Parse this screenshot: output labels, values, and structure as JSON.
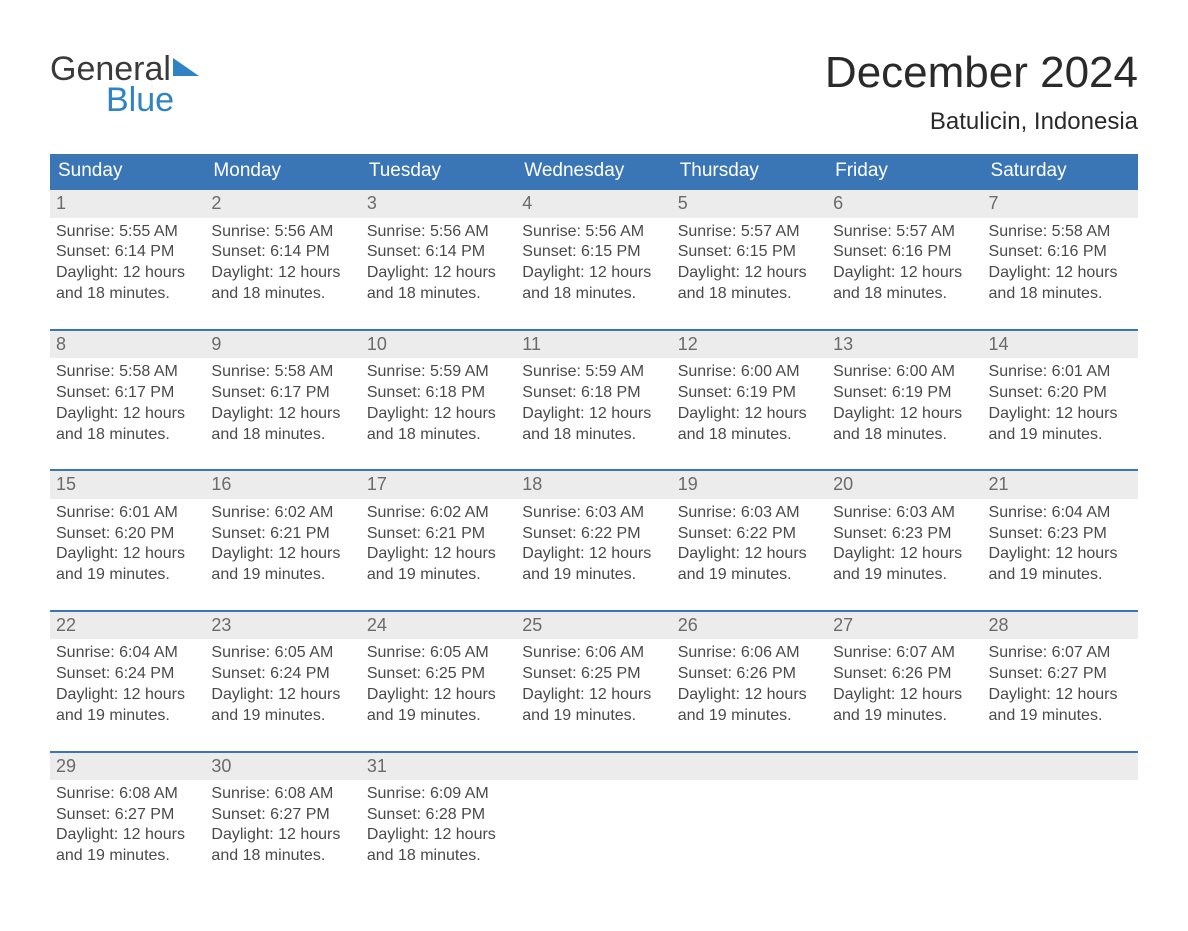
{
  "brand": {
    "word1": "General",
    "word2": "Blue"
  },
  "title": {
    "month": "December 2024",
    "location": "Batulicin, Indonesia"
  },
  "colors": {
    "header_blue": "#3a76b6",
    "row_stripe": "#ececec",
    "separator": "#3a76b6",
    "logo_blue": "#2f83c5",
    "background": "#ffffff",
    "text_dark": "#2b2b2b",
    "text_mid": "#4a4a4a",
    "day_num": "#6b6b6b"
  },
  "typography": {
    "month_title_pt": 44,
    "location_pt": 24,
    "weekday_pt": 19,
    "body_pt": 16,
    "daynum_pt": 18,
    "family": "Arial"
  },
  "weekdays": [
    "Sunday",
    "Monday",
    "Tuesday",
    "Wednesday",
    "Thursday",
    "Friday",
    "Saturday"
  ],
  "first_weekday_index": 0,
  "days": [
    {
      "n": 1,
      "sunrise": "5:55 AM",
      "sunset": "6:14 PM",
      "daylight": "12 hours and 18 minutes."
    },
    {
      "n": 2,
      "sunrise": "5:56 AM",
      "sunset": "6:14 PM",
      "daylight": "12 hours and 18 minutes."
    },
    {
      "n": 3,
      "sunrise": "5:56 AM",
      "sunset": "6:14 PM",
      "daylight": "12 hours and 18 minutes."
    },
    {
      "n": 4,
      "sunrise": "5:56 AM",
      "sunset": "6:15 PM",
      "daylight": "12 hours and 18 minutes."
    },
    {
      "n": 5,
      "sunrise": "5:57 AM",
      "sunset": "6:15 PM",
      "daylight": "12 hours and 18 minutes."
    },
    {
      "n": 6,
      "sunrise": "5:57 AM",
      "sunset": "6:16 PM",
      "daylight": "12 hours and 18 minutes."
    },
    {
      "n": 7,
      "sunrise": "5:58 AM",
      "sunset": "6:16 PM",
      "daylight": "12 hours and 18 minutes."
    },
    {
      "n": 8,
      "sunrise": "5:58 AM",
      "sunset": "6:17 PM",
      "daylight": "12 hours and 18 minutes."
    },
    {
      "n": 9,
      "sunrise": "5:58 AM",
      "sunset": "6:17 PM",
      "daylight": "12 hours and 18 minutes."
    },
    {
      "n": 10,
      "sunrise": "5:59 AM",
      "sunset": "6:18 PM",
      "daylight": "12 hours and 18 minutes."
    },
    {
      "n": 11,
      "sunrise": "5:59 AM",
      "sunset": "6:18 PM",
      "daylight": "12 hours and 18 minutes."
    },
    {
      "n": 12,
      "sunrise": "6:00 AM",
      "sunset": "6:19 PM",
      "daylight": "12 hours and 18 minutes."
    },
    {
      "n": 13,
      "sunrise": "6:00 AM",
      "sunset": "6:19 PM",
      "daylight": "12 hours and 18 minutes."
    },
    {
      "n": 14,
      "sunrise": "6:01 AM",
      "sunset": "6:20 PM",
      "daylight": "12 hours and 19 minutes."
    },
    {
      "n": 15,
      "sunrise": "6:01 AM",
      "sunset": "6:20 PM",
      "daylight": "12 hours and 19 minutes."
    },
    {
      "n": 16,
      "sunrise": "6:02 AM",
      "sunset": "6:21 PM",
      "daylight": "12 hours and 19 minutes."
    },
    {
      "n": 17,
      "sunrise": "6:02 AM",
      "sunset": "6:21 PM",
      "daylight": "12 hours and 19 minutes."
    },
    {
      "n": 18,
      "sunrise": "6:03 AM",
      "sunset": "6:22 PM",
      "daylight": "12 hours and 19 minutes."
    },
    {
      "n": 19,
      "sunrise": "6:03 AM",
      "sunset": "6:22 PM",
      "daylight": "12 hours and 19 minutes."
    },
    {
      "n": 20,
      "sunrise": "6:03 AM",
      "sunset": "6:23 PM",
      "daylight": "12 hours and 19 minutes."
    },
    {
      "n": 21,
      "sunrise": "6:04 AM",
      "sunset": "6:23 PM",
      "daylight": "12 hours and 19 minutes."
    },
    {
      "n": 22,
      "sunrise": "6:04 AM",
      "sunset": "6:24 PM",
      "daylight": "12 hours and 19 minutes."
    },
    {
      "n": 23,
      "sunrise": "6:05 AM",
      "sunset": "6:24 PM",
      "daylight": "12 hours and 19 minutes."
    },
    {
      "n": 24,
      "sunrise": "6:05 AM",
      "sunset": "6:25 PM",
      "daylight": "12 hours and 19 minutes."
    },
    {
      "n": 25,
      "sunrise": "6:06 AM",
      "sunset": "6:25 PM",
      "daylight": "12 hours and 19 minutes."
    },
    {
      "n": 26,
      "sunrise": "6:06 AM",
      "sunset": "6:26 PM",
      "daylight": "12 hours and 19 minutes."
    },
    {
      "n": 27,
      "sunrise": "6:07 AM",
      "sunset": "6:26 PM",
      "daylight": "12 hours and 19 minutes."
    },
    {
      "n": 28,
      "sunrise": "6:07 AM",
      "sunset": "6:27 PM",
      "daylight": "12 hours and 19 minutes."
    },
    {
      "n": 29,
      "sunrise": "6:08 AM",
      "sunset": "6:27 PM",
      "daylight": "12 hours and 19 minutes."
    },
    {
      "n": 30,
      "sunrise": "6:08 AM",
      "sunset": "6:27 PM",
      "daylight": "12 hours and 18 minutes."
    },
    {
      "n": 31,
      "sunrise": "6:09 AM",
      "sunset": "6:28 PM",
      "daylight": "12 hours and 18 minutes."
    }
  ],
  "labels": {
    "sunrise": "Sunrise:",
    "sunset": "Sunset:",
    "daylight": "Daylight:"
  }
}
